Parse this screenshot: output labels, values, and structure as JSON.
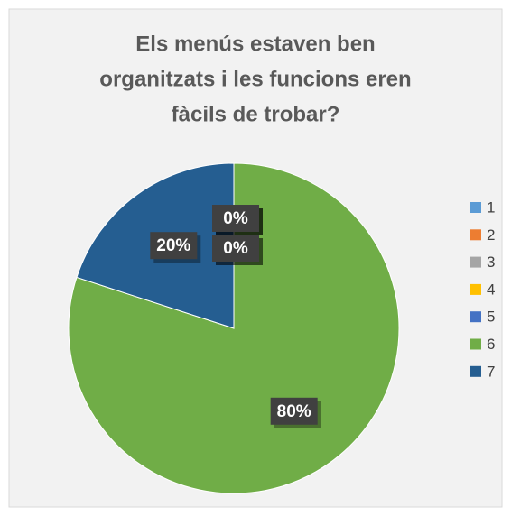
{
  "chart_data": {
    "type": "pie",
    "title": [
      "Els menús estaven ben",
      "organitzats i les funcions eren",
      "fàcils de trobar?"
    ],
    "categories": [
      "1",
      "2",
      "3",
      "4",
      "5",
      "6",
      "7"
    ],
    "values": [
      0,
      0,
      0,
      0,
      0,
      80,
      20
    ],
    "value_labels": [
      "0%",
      "0%",
      "0%",
      "0%",
      "0%",
      "80%",
      "20%"
    ],
    "colors": [
      "#5b9bd5",
      "#ed7d31",
      "#a5a5a5",
      "#ffc000",
      "#4472c4",
      "#70ad47",
      "#255e91"
    ],
    "legend": "right"
  }
}
